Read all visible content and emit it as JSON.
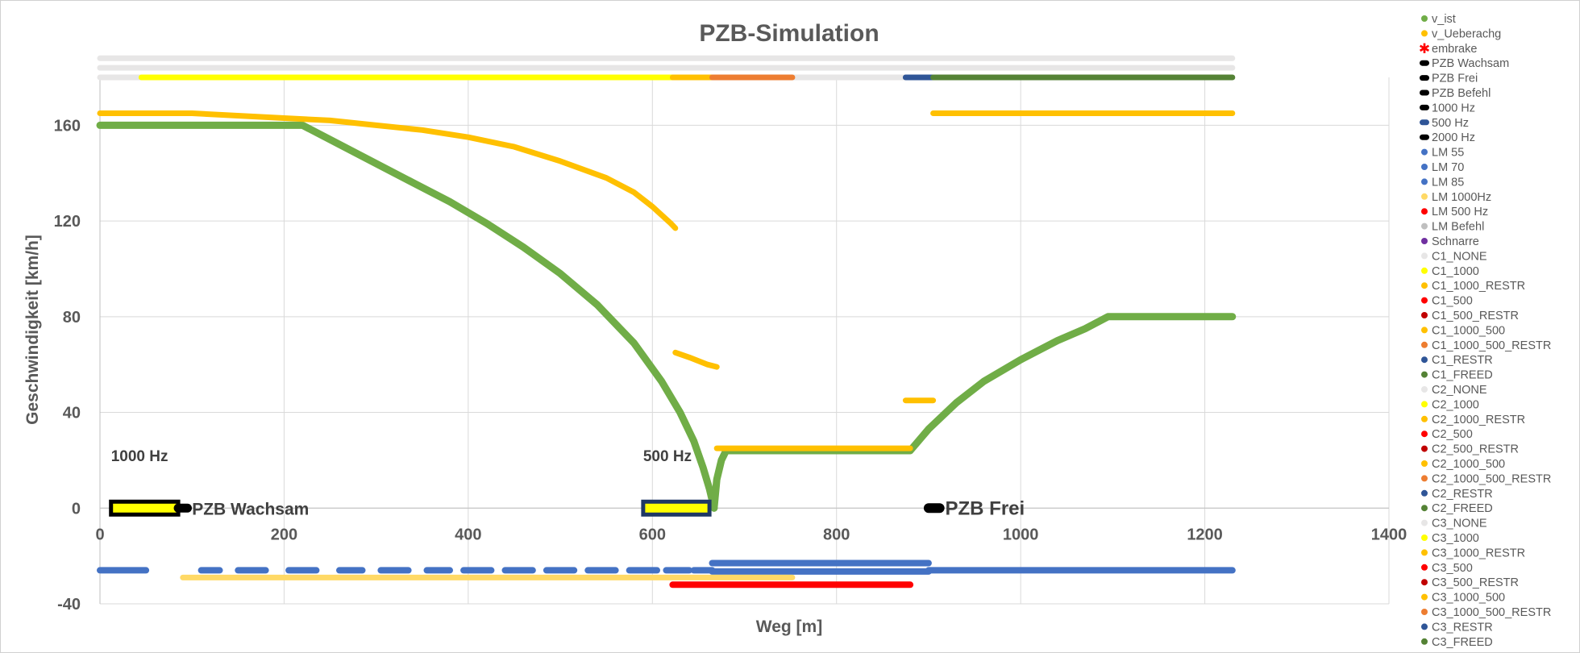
{
  "chart_data": {
    "type": "scatter",
    "title": "PZB-Simulation",
    "xlabel": "Weg [m]",
    "ylabel": "Geschwindigkeit [km/h]",
    "xlim": [
      0,
      1400
    ],
    "ylim": [
      -40,
      180
    ],
    "xticks": [
      0,
      200,
      400,
      600,
      800,
      1000,
      1200,
      1400
    ],
    "yticks": [
      -40,
      0,
      40,
      80,
      120,
      160
    ],
    "grid": true,
    "legend_position": "right",
    "annotations": [
      {
        "text": "1000 Hz",
        "x": 12,
        "y": 22
      },
      {
        "text": "500 Hz",
        "x": 590,
        "y": 22
      }
    ],
    "legend": [
      {
        "name": "v_ist",
        "color": "#70ad47",
        "marker": "dot"
      },
      {
        "name": "v_Ueberachg",
        "color": "#ffc000",
        "marker": "dot"
      },
      {
        "name": "embrake",
        "color": "#ff0000",
        "marker": "star"
      },
      {
        "name": "PZB Wachsam",
        "color": "#000000",
        "marker": "dash"
      },
      {
        "name": "PZB Frei",
        "color": "#000000",
        "marker": "dash"
      },
      {
        "name": "PZB Befehl",
        "color": "#000000",
        "marker": "dash"
      },
      {
        "name": "1000 Hz",
        "color": "#000000",
        "marker": "dash"
      },
      {
        "name": "500 Hz",
        "color": "#2f5597",
        "marker": "dash"
      },
      {
        "name": " 2000 Hz",
        "color": "#000000",
        "marker": "dash"
      },
      {
        "name": "LM 55",
        "color": "#4472c4",
        "marker": "dot"
      },
      {
        "name": "LM 70",
        "color": "#4472c4",
        "marker": "dot"
      },
      {
        "name": "LM 85",
        "color": "#4472c4",
        "marker": "dot"
      },
      {
        "name": "LM 1000Hz",
        "color": "#ffd966",
        "marker": "dot"
      },
      {
        "name": "LM 500 Hz",
        "color": "#ff0000",
        "marker": "dot"
      },
      {
        "name": "LM Befehl",
        "color": "#bfbfbf",
        "marker": "dot"
      },
      {
        "name": "Schnarre",
        "color": "#7030a0",
        "marker": "dot"
      },
      {
        "name": "C1_NONE",
        "color": "#e7e6e6",
        "marker": "dot"
      },
      {
        "name": "C1_1000",
        "color": "#ffff00",
        "marker": "dot"
      },
      {
        "name": "C1_1000_RESTR",
        "color": "#ffc000",
        "marker": "dot"
      },
      {
        "name": "C1_500",
        "color": "#ff0000",
        "marker": "dot"
      },
      {
        "name": "C1_500_RESTR",
        "color": "#c00000",
        "marker": "dot"
      },
      {
        "name": "C1_1000_500",
        "color": "#ffc000",
        "marker": "dot"
      },
      {
        "name": "C1_1000_500_RESTR",
        "color": "#ed7d31",
        "marker": "dot"
      },
      {
        "name": "C1_RESTR",
        "color": "#2f5597",
        "marker": "dot"
      },
      {
        "name": "C1_FREED",
        "color": "#548235",
        "marker": "dot"
      },
      {
        "name": "C2_NONE",
        "color": "#e7e6e6",
        "marker": "dot"
      },
      {
        "name": "C2_1000",
        "color": "#ffff00",
        "marker": "dot"
      },
      {
        "name": "C2_1000_RESTR",
        "color": "#ffc000",
        "marker": "dot"
      },
      {
        "name": "C2_500",
        "color": "#ff0000",
        "marker": "dot"
      },
      {
        "name": "C2_500_RESTR",
        "color": "#c00000",
        "marker": "dot"
      },
      {
        "name": "C2_1000_500",
        "color": "#ffc000",
        "marker": "dot"
      },
      {
        "name": "C2_1000_500_RESTR",
        "color": "#ed7d31",
        "marker": "dot"
      },
      {
        "name": "C2_RESTR",
        "color": "#2f5597",
        "marker": "dot"
      },
      {
        "name": "C2_FREED",
        "color": "#548235",
        "marker": "dot"
      },
      {
        "name": "C3_NONE",
        "color": "#e7e6e6",
        "marker": "dot"
      },
      {
        "name": "C3_1000",
        "color": "#ffff00",
        "marker": "dot"
      },
      {
        "name": "C3_1000_RESTR",
        "color": "#ffc000",
        "marker": "dot"
      },
      {
        "name": "C3_500",
        "color": "#ff0000",
        "marker": "dot"
      },
      {
        "name": "C3_500_RESTR",
        "color": "#c00000",
        "marker": "dot"
      },
      {
        "name": "C3_1000_500",
        "color": "#ffc000",
        "marker": "dot"
      },
      {
        "name": "C3_1000_500_RESTR",
        "color": "#ed7d31",
        "marker": "dot"
      },
      {
        "name": "C3_RESTR",
        "color": "#2f5597",
        "marker": "dot"
      },
      {
        "name": "C3_FREED",
        "color": "#548235",
        "marker": "dot"
      }
    ],
    "series": [
      {
        "name": "v_ist",
        "color": "#70ad47",
        "width": 9,
        "segments": [
          [
            [
              0,
              160
            ],
            [
              100,
              160
            ],
            [
              200,
              160
            ],
            [
              220,
              160
            ],
            [
              260,
              152
            ],
            [
              300,
              144
            ],
            [
              340,
              136
            ],
            [
              380,
              128
            ],
            [
              420,
              119
            ],
            [
              460,
              109
            ],
            [
              500,
              98
            ],
            [
              540,
              85
            ],
            [
              580,
              69
            ],
            [
              610,
              53
            ],
            [
              630,
              40
            ],
            [
              645,
              28
            ],
            [
              655,
              17
            ],
            [
              662,
              8
            ],
            [
              667,
              0
            ]
          ],
          [
            [
              667,
              0
            ],
            [
              670,
              12
            ],
            [
              675,
              20
            ],
            [
              680,
              24
            ],
            [
              700,
              24
            ],
            [
              800,
              24
            ],
            [
              880,
              24
            ],
            [
              900,
              33
            ],
            [
              930,
              44
            ],
            [
              960,
              53
            ],
            [
              1000,
              62
            ],
            [
              1040,
              70
            ],
            [
              1070,
              75
            ],
            [
              1095,
              80
            ],
            [
              1150,
              80
            ],
            [
              1230,
              80
            ]
          ]
        ]
      },
      {
        "name": "v_Ueberachg",
        "color": "#ffc000",
        "width": 7,
        "segments": [
          [
            [
              0,
              165
            ],
            [
              100,
              165
            ],
            [
              200,
              163
            ],
            [
              250,
              162
            ],
            [
              300,
              160
            ],
            [
              350,
              158
            ],
            [
              400,
              155
            ],
            [
              450,
              151
            ],
            [
              500,
              145
            ],
            [
              550,
              138
            ],
            [
              580,
              132
            ],
            [
              600,
              126
            ],
            [
              620,
              119
            ],
            [
              625,
              117
            ]
          ],
          [
            [
              625,
              65
            ],
            [
              640,
              63
            ],
            [
              660,
              60
            ],
            [
              670,
              59
            ]
          ],
          [
            [
              670,
              25
            ],
            [
              760,
              25
            ],
            [
              880,
              25
            ]
          ],
          [
            [
              875,
              45
            ],
            [
              905,
              45
            ]
          ],
          [
            [
              905,
              165
            ],
            [
              1050,
              165
            ],
            [
              1230,
              165
            ]
          ]
        ]
      },
      {
        "name": "C1_NONE",
        "color": "#e7e6e6",
        "width": 7,
        "segments": [
          [
            [
              0,
              188
            ],
            [
              1230,
              188
            ]
          ]
        ]
      },
      {
        "name": "C2_NONE",
        "color": "#e7e6e6",
        "width": 7,
        "segments": [
          [
            [
              0,
              184
            ],
            [
              1230,
              184
            ]
          ]
        ]
      },
      {
        "name": "C3_NONE",
        "color": "#e7e6e6",
        "width": 7,
        "segments": [
          [
            [
              0,
              180
            ],
            [
              45,
              180
            ]
          ],
          [
            [
              752,
              180
            ],
            [
              875,
              180
            ]
          ]
        ]
      },
      {
        "name": "C3_1000",
        "color": "#ffff00",
        "width": 7,
        "segments": [
          [
            [
              45,
              180
            ],
            [
              622,
              180
            ]
          ]
        ]
      },
      {
        "name": "C3_1000_RESTR",
        "color": "#ffc000",
        "width": 7,
        "segments": [
          [
            [
              622,
              180
            ],
            [
              665,
              180
            ]
          ]
        ]
      },
      {
        "name": "C3_1000_500_RESTR",
        "color": "#ed7d31",
        "width": 7,
        "segments": [
          [
            [
              665,
              180
            ],
            [
              752,
              180
            ]
          ]
        ]
      },
      {
        "name": "C3_RESTR",
        "color": "#2f5597",
        "width": 7,
        "segments": [
          [
            [
              875,
              180
            ],
            [
              905,
              180
            ]
          ]
        ]
      },
      {
        "name": "C3_FREED",
        "color": "#548235",
        "width": 7,
        "segments": [
          [
            [
              905,
              180
            ],
            [
              1230,
              180
            ]
          ]
        ]
      },
      {
        "name": "LM 55",
        "color": "#4472c4",
        "width": 8,
        "segments": [
          [
            [
              0,
              -26
            ],
            [
              50,
              -26
            ]
          ],
          [
            [
              110,
              -26
            ],
            [
              130,
              -26
            ]
          ],
          [
            [
              150,
              -26
            ],
            [
              180,
              -26
            ]
          ],
          [
            [
              205,
              -26
            ],
            [
              235,
              -26
            ]
          ],
          [
            [
              260,
              -26
            ],
            [
              285,
              -26
            ]
          ],
          [
            [
              305,
              -26
            ],
            [
              335,
              -26
            ]
          ],
          [
            [
              355,
              -26
            ],
            [
              380,
              -26
            ]
          ],
          [
            [
              395,
              -26
            ],
            [
              425,
              -26
            ]
          ],
          [
            [
              440,
              -26
            ],
            [
              470,
              -26
            ]
          ],
          [
            [
              485,
              -26
            ],
            [
              515,
              -26
            ]
          ],
          [
            [
              530,
              -26
            ],
            [
              560,
              -26
            ]
          ],
          [
            [
              575,
              -26
            ],
            [
              605,
              -26
            ]
          ],
          [
            [
              615,
              -26
            ],
            [
              640,
              -26
            ]
          ],
          [
            [
              645,
              -26
            ],
            [
              665,
              -26
            ]
          ],
          [
            [
              900,
              -26
            ],
            [
              1230,
              -26
            ]
          ]
        ]
      },
      {
        "name": "LM 85",
        "color": "#4472c4",
        "width": 8,
        "segments": [
          [
            [
              665,
              -23
            ],
            [
              900,
              -23
            ]
          ]
        ]
      },
      {
        "name": "LM 70",
        "color": "#4472c4",
        "width": 8,
        "segments": [
          [
            [
              665,
              -26.5
            ],
            [
              900,
              -26.5
            ]
          ]
        ]
      },
      {
        "name": "LM 1000Hz",
        "color": "#ffd966",
        "width": 7,
        "segments": [
          [
            [
              90,
              -29
            ],
            [
              752,
              -29
            ]
          ]
        ]
      },
      {
        "name": "LM 500 Hz",
        "color": "#ff0000",
        "width": 8,
        "segments": [
          [
            [
              622,
              -32
            ],
            [
              880,
              -32
            ]
          ]
        ]
      }
    ],
    "indicators": [
      {
        "label": "PZB Wachsam",
        "x": [
          12,
          85
        ],
        "y": 0,
        "fill": "#ffff00",
        "border": "#000000",
        "tail": [
          85,
          95
        ],
        "label_x": 100
      },
      {
        "label": "",
        "x": [
          590,
          662
        ],
        "y": 0,
        "fill": "#ffff00",
        "border": "#1f3864",
        "tail": null,
        "label_x": null
      },
      {
        "label": "PZB Frei",
        "x": [
          900,
          912
        ],
        "y": 0,
        "fill": "#000000",
        "border": "#000000",
        "tail": null,
        "label_x": 918
      }
    ]
  }
}
